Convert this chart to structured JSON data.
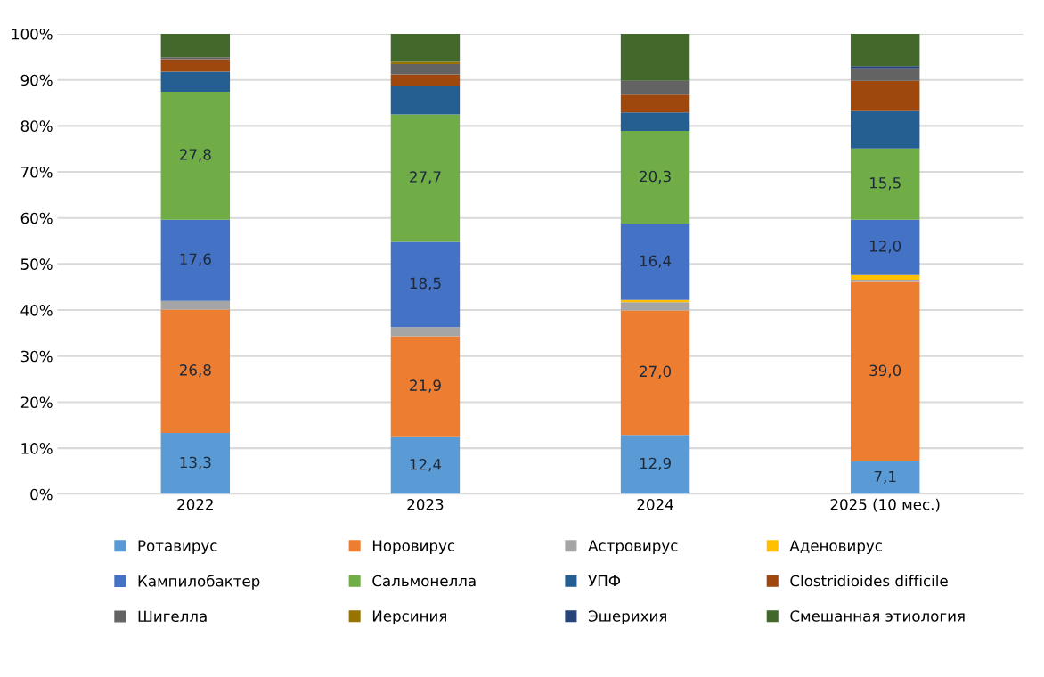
{
  "chart_data": {
    "type": "bar",
    "stacked": true,
    "categories": [
      "2022",
      "2023",
      "2024",
      "2025 (10 мес.)"
    ],
    "ylim": [
      0,
      100
    ],
    "yticks": [
      {
        "value": 0,
        "label": "0%"
      },
      {
        "value": 10,
        "label": "10%"
      },
      {
        "value": 20,
        "label": "20%"
      },
      {
        "value": 30,
        "label": "30%"
      },
      {
        "value": 40,
        "label": "40%"
      },
      {
        "value": 50,
        "label": "50%"
      },
      {
        "value": 60,
        "label": "60%"
      },
      {
        "value": 70,
        "label": "70%"
      },
      {
        "value": 80,
        "label": "80%"
      },
      {
        "value": 90,
        "label": "90%"
      },
      {
        "value": 100,
        "label": "100%"
      }
    ],
    "grid": "y",
    "legend": "bottom",
    "series": [
      {
        "name": "Ротавирус",
        "color": "#5b9bd5",
        "values": [
          13.3,
          12.4,
          12.9,
          7.1
        ],
        "value_labels": [
          "13,3",
          "12,4",
          "12,9",
          "7,1"
        ]
      },
      {
        "name": "Норовирус",
        "color": "#ed7d31",
        "values": [
          26.8,
          21.9,
          27.0,
          39.0
        ],
        "value_labels": [
          "26,8",
          "21,9",
          "27,0",
          "39,0"
        ]
      },
      {
        "name": "Астровирус",
        "color": "#a5a5a5",
        "values": [
          1.9,
          2.0,
          1.8,
          0.5
        ]
      },
      {
        "name": "Аденовирус",
        "color": "#ffc000",
        "values": [
          0,
          0,
          0.5,
          1.0
        ]
      },
      {
        "name": "Кампилобактер",
        "color": "#4472c4",
        "values": [
          17.6,
          18.5,
          16.4,
          12.0
        ],
        "value_labels": [
          "17,6",
          "18,5",
          "16,4",
          "12,0"
        ]
      },
      {
        "name": "Сальмонелла",
        "color": "#70ad47",
        "values": [
          27.8,
          27.7,
          20.3,
          15.5
        ],
        "value_labels": [
          "27,8",
          "27,7",
          "20,3",
          "15,5"
        ]
      },
      {
        "name": "УПФ",
        "color": "#255e91",
        "values": [
          4.4,
          6.3,
          4.0,
          8.1
        ]
      },
      {
        "name": "Clostridioides difficile",
        "color": "#9e480e",
        "values": [
          2.7,
          2.4,
          3.9,
          6.6
        ]
      },
      {
        "name": "Шигелла",
        "color": "#636363",
        "values": [
          0.4,
          2.2,
          3.0,
          2.7
        ]
      },
      {
        "name": "Иерсиния",
        "color": "#997300",
        "values": [
          0,
          0.5,
          0,
          0
        ]
      },
      {
        "name": "Эшерихия",
        "color": "#264478",
        "values": [
          0,
          0,
          0,
          0.5
        ]
      },
      {
        "name": "Смешанная этиология",
        "color": "#43682b",
        "values": [
          5.1,
          6.1,
          10.2,
          7.0
        ]
      }
    ]
  }
}
